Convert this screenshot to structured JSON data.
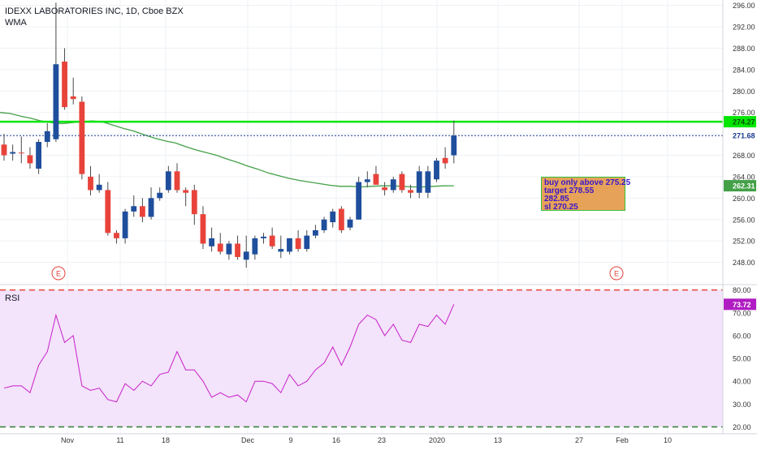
{
  "header": {
    "title": "IDEXX LABORATORIES INC, 1D, Cboe BZX",
    "indicator": "WMA"
  },
  "rsi_label": "RSI",
  "annotation": {
    "lines": [
      "buy only above 275.25",
      "target 278.55",
      "282.85",
      "sl 270.25"
    ]
  },
  "earnings_marker": "E",
  "colors": {
    "up": "#1f4e9c",
    "down": "#e8433a",
    "wma": "#43a047",
    "resistance": "#00e600",
    "last_price": "#1a3a8f",
    "rsi_line": "#c81fc8",
    "rsi_band": "#f3e3fb"
  },
  "chart_data": [
    {
      "type": "candlestick",
      "title": "IDEXX LABORATORIES INC, 1D, Cboe BZX",
      "ylim": [
        244,
        297
      ],
      "y_ticks": [
        248,
        252,
        256,
        260,
        264,
        268,
        272,
        276,
        280,
        284,
        288,
        292,
        296
      ],
      "y_tick_labels": [
        "248.00",
        "252.00",
        "256.00",
        "260.00",
        "264.00",
        "268.00",
        "272.00",
        "276.00",
        "280.00",
        "284.00",
        "288.00",
        "292.00",
        "296.00"
      ],
      "x_ticks": [
        "Nov",
        "11",
        "18",
        "Dec",
        "9",
        "16",
        "23",
        "2020",
        "13",
        "27",
        "Feb",
        "10"
      ],
      "candles": [
        {
          "o": 270.0,
          "h": 272.0,
          "l": 267.0,
          "c": 268.0
        },
        {
          "o": 268.3,
          "h": 270.0,
          "l": 267.0,
          "c": 268.6
        },
        {
          "o": 268.5,
          "h": 271.5,
          "l": 266.5,
          "c": 268.4
        },
        {
          "o": 268.0,
          "h": 269.5,
          "l": 265.5,
          "c": 266.5
        },
        {
          "o": 265.5,
          "h": 271.0,
          "l": 264.5,
          "c": 270.5
        },
        {
          "o": 270.5,
          "h": 274.0,
          "l": 269.5,
          "c": 272.5
        },
        {
          "o": 271.0,
          "h": 296.5,
          "l": 270.5,
          "c": 285.0
        },
        {
          "o": 285.5,
          "h": 288.0,
          "l": 276.5,
          "c": 277.0
        },
        {
          "o": 279.0,
          "h": 282.5,
          "l": 277.5,
          "c": 278.5
        },
        {
          "o": 278.0,
          "h": 279.0,
          "l": 263.5,
          "c": 264.5
        },
        {
          "o": 264.0,
          "h": 266.0,
          "l": 260.5,
          "c": 261.5
        },
        {
          "o": 261.5,
          "h": 264.5,
          "l": 261.0,
          "c": 262.5
        },
        {
          "o": 261.5,
          "h": 263.0,
          "l": 253.0,
          "c": 253.5
        },
        {
          "o": 253.5,
          "h": 254.0,
          "l": 251.5,
          "c": 252.5
        },
        {
          "o": 252.5,
          "h": 258.0,
          "l": 251.5,
          "c": 257.5
        },
        {
          "o": 257.5,
          "h": 260.5,
          "l": 256.5,
          "c": 258.5
        },
        {
          "o": 258.5,
          "h": 260.0,
          "l": 255.5,
          "c": 256.5
        },
        {
          "o": 256.5,
          "h": 262.0,
          "l": 256.0,
          "c": 260.0
        },
        {
          "o": 260.0,
          "h": 262.0,
          "l": 259.5,
          "c": 261.0
        },
        {
          "o": 261.5,
          "h": 266.0,
          "l": 261.0,
          "c": 265.0
        },
        {
          "o": 265.0,
          "h": 266.5,
          "l": 261.0,
          "c": 261.5
        },
        {
          "o": 261.5,
          "h": 262.0,
          "l": 258.5,
          "c": 261.0
        },
        {
          "o": 261.5,
          "h": 262.5,
          "l": 255.0,
          "c": 257.0
        },
        {
          "o": 257.0,
          "h": 258.5,
          "l": 250.5,
          "c": 251.5
        },
        {
          "o": 251.0,
          "h": 254.5,
          "l": 250.0,
          "c": 252.5
        },
        {
          "o": 251.5,
          "h": 253.5,
          "l": 249.5,
          "c": 250.0
        },
        {
          "o": 249.5,
          "h": 252.0,
          "l": 248.5,
          "c": 251.5
        },
        {
          "o": 251.5,
          "h": 253.0,
          "l": 248.5,
          "c": 249.0
        },
        {
          "o": 248.5,
          "h": 253.0,
          "l": 247.0,
          "c": 250.0
        },
        {
          "o": 249.5,
          "h": 253.0,
          "l": 248.5,
          "c": 252.5
        },
        {
          "o": 252.5,
          "h": 253.5,
          "l": 251.5,
          "c": 252.8
        },
        {
          "o": 253.0,
          "h": 254.5,
          "l": 250.5,
          "c": 251.0
        },
        {
          "o": 250.0,
          "h": 253.0,
          "l": 248.8,
          "c": 250.5
        },
        {
          "o": 250.0,
          "h": 252.5,
          "l": 249.5,
          "c": 252.5
        },
        {
          "o": 252.5,
          "h": 254.0,
          "l": 250.0,
          "c": 250.5
        },
        {
          "o": 250.5,
          "h": 254.0,
          "l": 250.0,
          "c": 253.0
        },
        {
          "o": 253.0,
          "h": 255.0,
          "l": 252.5,
          "c": 254.0
        },
        {
          "o": 254.0,
          "h": 256.5,
          "l": 253.5,
          "c": 256.0
        },
        {
          "o": 255.5,
          "h": 258.0,
          "l": 254.5,
          "c": 257.5
        },
        {
          "o": 258.0,
          "h": 258.5,
          "l": 253.5,
          "c": 254.0
        },
        {
          "o": 254.5,
          "h": 256.5,
          "l": 254.0,
          "c": 256.0
        },
        {
          "o": 256.0,
          "h": 264.0,
          "l": 256.0,
          "c": 263.0
        },
        {
          "o": 263.0,
          "h": 265.0,
          "l": 262.0,
          "c": 263.5
        },
        {
          "o": 264.5,
          "h": 266.0,
          "l": 262.5,
          "c": 262.5
        },
        {
          "o": 262.0,
          "h": 263.0,
          "l": 260.5,
          "c": 261.5
        },
        {
          "o": 261.5,
          "h": 264.0,
          "l": 261.0,
          "c": 263.5
        },
        {
          "o": 264.5,
          "h": 265.0,
          "l": 261.0,
          "c": 261.5
        },
        {
          "o": 261.5,
          "h": 262.5,
          "l": 260.0,
          "c": 261.0
        },
        {
          "o": 261.0,
          "h": 266.0,
          "l": 260.0,
          "c": 265.0
        },
        {
          "o": 261.0,
          "h": 266.0,
          "l": 260.0,
          "c": 265.0
        },
        {
          "o": 263.5,
          "h": 267.5,
          "l": 263.0,
          "c": 267.0
        },
        {
          "o": 267.5,
          "h": 269.5,
          "l": 265.5,
          "c": 266.5
        },
        {
          "o": 268.0,
          "h": 274.5,
          "l": 266.5,
          "c": 271.68
        }
      ],
      "wma": [
        276.0,
        275.8,
        275.3,
        274.9,
        274.4,
        274.1,
        273.9,
        274.1,
        274.3,
        274.4,
        274.2,
        273.6,
        273.0,
        272.5,
        271.8,
        271.2,
        270.7,
        270.3,
        269.6,
        269.0,
        268.5,
        268.0,
        267.3,
        266.7,
        266.0,
        265.4,
        264.7,
        264.2,
        263.7,
        263.3,
        263.0,
        262.7,
        262.4,
        262.2,
        262.2,
        262.1,
        262.2,
        262.3,
        262.3,
        262.2,
        262.1,
        262.1,
        262.2,
        262.3,
        262.31
      ],
      "horizontal_lines": [
        {
          "value": 274.27,
          "label": "274.27",
          "style": "solid"
        },
        {
          "value": 271.68,
          "label": "271.68",
          "style": "dotted"
        }
      ],
      "wma_last_label": "262.31"
    },
    {
      "type": "line",
      "title": "RSI",
      "ylim": [
        17,
        82
      ],
      "y_ticks": [
        20,
        30,
        40,
        50,
        60,
        70,
        80
      ],
      "y_tick_labels": [
        "20.00",
        "30.00",
        "40.00",
        "50.00",
        "60.00",
        "70.00",
        "80.00"
      ],
      "bands": [
        20,
        80
      ],
      "values": [
        37,
        38,
        38,
        35,
        47,
        53,
        69,
        57,
        60,
        38,
        36,
        37,
        32,
        31,
        39,
        36,
        40,
        38,
        43,
        44,
        53,
        45,
        45,
        40,
        33,
        35,
        33,
        34,
        31,
        40,
        40,
        39,
        35,
        43,
        38,
        40,
        45,
        48,
        55,
        47,
        55,
        65,
        69,
        67,
        60,
        65,
        58,
        57,
        65,
        64,
        69,
        65,
        73.72
      ],
      "last_label": "73.72"
    }
  ]
}
